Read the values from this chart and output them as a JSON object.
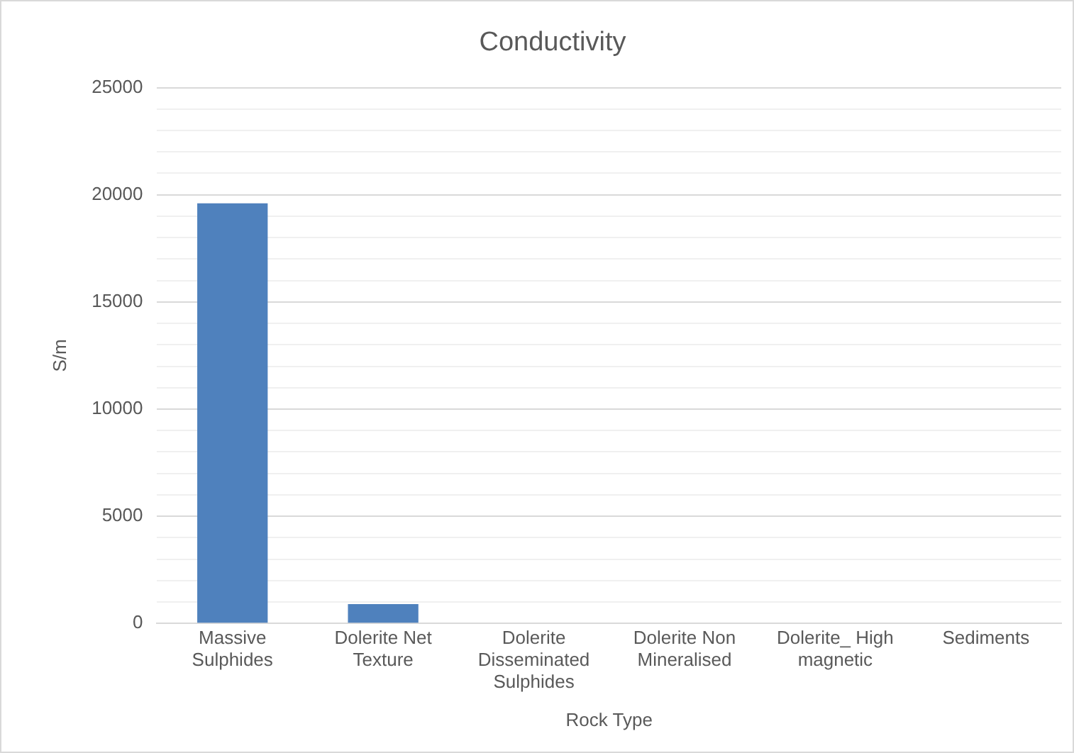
{
  "chart_data": {
    "type": "bar",
    "title": "Conductivity",
    "xlabel": "Rock Type",
    "ylabel": "S/m",
    "categories": [
      "Massive Sulphides",
      "Dolerite Net Texture",
      "Dolerite Disseminated Sulphides",
      "Dolerite Non Mineralised",
      "Dolerite_ High magnetic",
      "Sediments"
    ],
    "values": [
      19600,
      900,
      0,
      0,
      0,
      0
    ],
    "color": "#4f81bd",
    "ylim": [
      0,
      25000
    ],
    "yticks": [
      0,
      {
        "value": 1000,
        "label": null
      },
      {
        "value": 2000,
        "label": null
      },
      {
        "value": 3000,
        "label": null
      },
      {
        "value": 4000,
        "label": null
      },
      5000,
      {
        "value": 6000,
        "label": null
      },
      {
        "value": 7000,
        "label": null
      },
      {
        "value": 8000,
        "label": null
      },
      {
        "value": 9000,
        "label": null
      },
      10000,
      {
        "value": 11000,
        "label": null
      },
      {
        "value": 12000,
        "label": null
      },
      {
        "value": 13000,
        "label": null
      },
      {
        "value": 14000,
        "label": null
      },
      15000,
      {
        "value": 16000,
        "label": null
      },
      {
        "value": 17000,
        "label": null
      },
      {
        "value": 18000,
        "label": null
      },
      {
        "value": 19000,
        "label": null
      },
      20000,
      {
        "value": 21000,
        "label": null
      },
      {
        "value": 22000,
        "label": null
      },
      {
        "value": 23000,
        "label": null
      },
      {
        "value": 24000,
        "label": null
      },
      25000
    ],
    "grid": "y",
    "legend": false
  }
}
